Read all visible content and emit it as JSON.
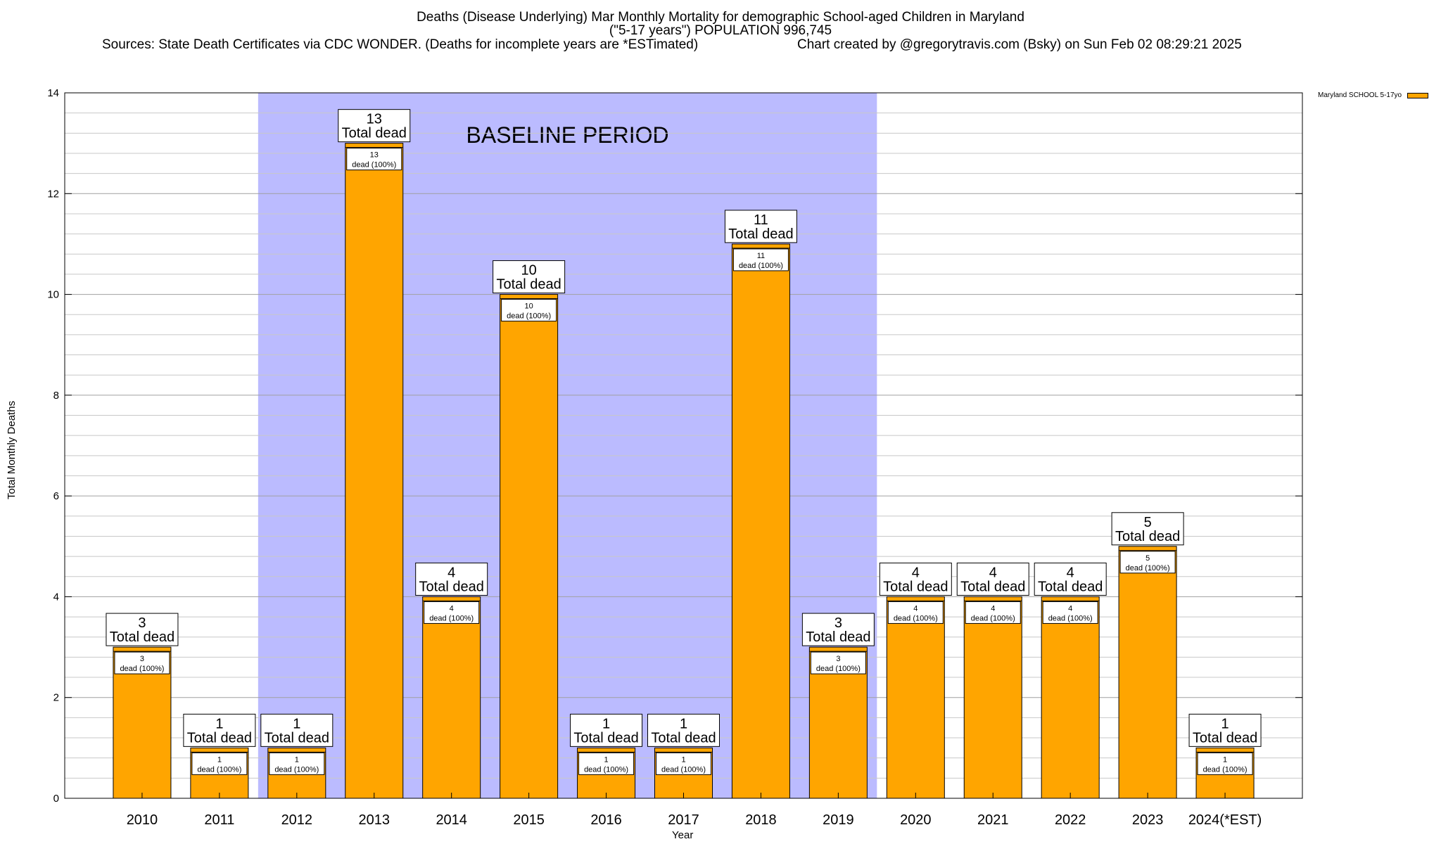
{
  "chart_data": {
    "type": "bar",
    "title": "Deaths (Disease Underlying) Mar Monthly Mortality for demographic School-aged Children in Maryland",
    "subtitle": "(\"5-17 years\") POPULATION 996,745",
    "sources": "Sources: State Death Certificates via CDC WONDER. (Deaths for incomplete years are *ESTimated)",
    "credit": "Chart created by @gregorytravis.com (Bsky) on Sun Feb 02 08:29:21 2025",
    "xlabel": "Year",
    "ylabel": "Total Monthly Deaths",
    "ylim": [
      0,
      14
    ],
    "yticks": [
      0,
      2,
      4,
      6,
      8,
      10,
      12,
      14
    ],
    "grid": true,
    "legend_position": "top-right",
    "categories": [
      "2010",
      "2011",
      "2012",
      "2013",
      "2014",
      "2015",
      "2016",
      "2017",
      "2018",
      "2019",
      "2020",
      "2021",
      "2022",
      "2023",
      "2024(*EST)"
    ],
    "series": [
      {
        "name": "Maryland SCHOOL 5-17yo",
        "color": "#FFA500",
        "values": [
          3,
          1,
          1,
          13,
          4,
          10,
          1,
          1,
          11,
          3,
          4,
          4,
          4,
          5,
          1
        ]
      }
    ],
    "total_label_suffix": "Total dead",
    "inner_label_suffix": "dead (100%)",
    "baseline": {
      "label": "BASELINE PERIOD",
      "from": "2012",
      "to": "2019",
      "color": "#BBBBFF"
    }
  }
}
